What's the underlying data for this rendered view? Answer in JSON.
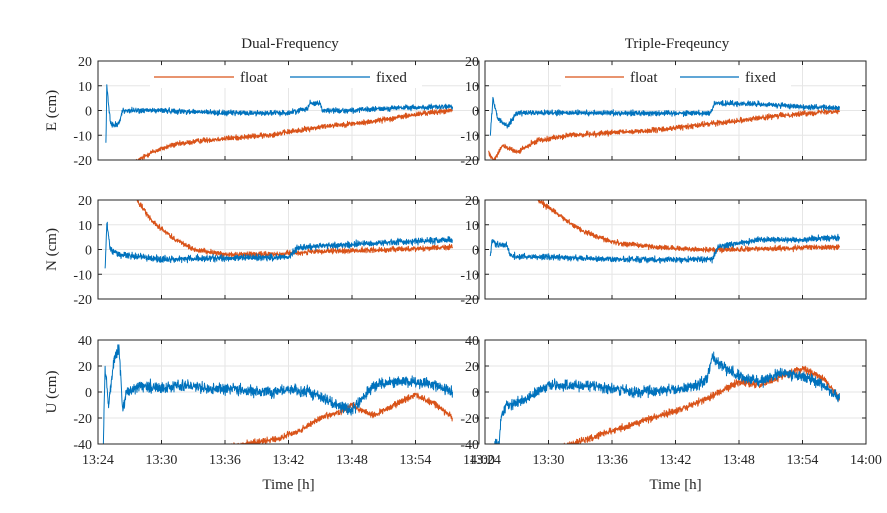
{
  "figure": {
    "col_titles": [
      "Dual-Frequency",
      "Triple-Freqeuncy"
    ],
    "xlabel": "Time [h]"
  },
  "colors": {
    "float": "#D95319",
    "fixed": "#0072BD",
    "grid": "#e6e6e6",
    "axis": "#262626"
  },
  "chart_data": [
    {
      "type": "line",
      "panel": "dual-E",
      "title": "Dual-Frequency",
      "ylabel": "E (cm)",
      "xlabel": "",
      "xlim": [
        "13:24",
        "14:00"
      ],
      "ylim": [
        -20,
        20
      ],
      "yticks": [
        -20,
        -10,
        0,
        10,
        20
      ],
      "xticks": [
        "13:24",
        "13:30",
        "13:36",
        "13:42",
        "13:48",
        "13:54",
        "14:00"
      ],
      "show_xticklabels": false,
      "grid": true,
      "legend": {
        "entries": [
          "float",
          "fixed"
        ],
        "placement": "top"
      },
      "series": [
        {
          "name": "float",
          "noise": 0.9,
          "x": [
            "13:27:30",
            "13:29",
            "13:31",
            "13:34",
            "13:37",
            "13:40",
            "13:43",
            "13:46",
            "13:49",
            "13:52",
            "13:55",
            "13:57:30"
          ],
          "y": [
            -21,
            -17,
            -14,
            -12,
            -11,
            -10,
            -8,
            -6,
            -5,
            -3,
            -1,
            0
          ]
        },
        {
          "name": "fixed",
          "noise": 0.9,
          "x": [
            "13:24:45",
            "13:24:50",
            "13:25:10",
            "13:25:30",
            "13:26",
            "13:26:20",
            "13:27",
            "13:30",
            "13:36",
            "13:42",
            "13:43:50",
            "13:44",
            "13:45",
            "13:45:10",
            "13:48",
            "13:52",
            "13:57:30"
          ],
          "y": [
            -13,
            10,
            -5,
            -6,
            -5,
            0,
            0,
            0,
            -1,
            -1,
            1,
            3,
            3,
            0,
            0,
            1,
            1.5
          ]
        }
      ]
    },
    {
      "type": "line",
      "panel": "triple-E",
      "title": "Triple-Freqeuncy",
      "ylabel": "",
      "xlabel": "",
      "xlim": [
        "13:24",
        "14:00"
      ],
      "ylim": [
        -20,
        20
      ],
      "yticks": [
        -20,
        -10,
        0,
        10,
        20
      ],
      "xticks": [
        "13:24",
        "13:30",
        "13:36",
        "13:42",
        "13:48",
        "13:54",
        "14:00"
      ],
      "show_xticklabels": false,
      "grid": true,
      "legend": {
        "entries": [
          "float",
          "fixed"
        ],
        "placement": "top"
      },
      "series": [
        {
          "name": "float",
          "noise": 0.9,
          "x": [
            "13:24:20",
            "13:24:50",
            "13:25:40",
            "13:27",
            "13:29",
            "13:32",
            "13:36",
            "13:40",
            "13:44",
            "13:48",
            "13:52",
            "13:57:30"
          ],
          "y": [
            -17,
            -20,
            -14,
            -17,
            -12,
            -10,
            -9,
            -8,
            -6,
            -4,
            -2,
            0
          ]
        },
        {
          "name": "fixed",
          "noise": 0.9,
          "x": [
            "13:24:30",
            "13:24:45",
            "13:25:10",
            "13:25:40",
            "13:26:10",
            "13:27",
            "13:30",
            "13:36",
            "13:42",
            "13:45:20",
            "13:45:40",
            "13:50",
            "13:54",
            "13:57:30"
          ],
          "y": [
            -10,
            5,
            -3,
            -5,
            -6,
            -1,
            -1,
            -1,
            -1,
            -1,
            3,
            2.5,
            1.5,
            1
          ]
        }
      ]
    },
    {
      "type": "line",
      "panel": "dual-N",
      "title": "",
      "ylabel": "N (cm)",
      "xlabel": "",
      "xlim": [
        "13:24",
        "14:00"
      ],
      "ylim": [
        -20,
        20
      ],
      "yticks": [
        -20,
        -10,
        0,
        10,
        20
      ],
      "xticks": [
        "13:24",
        "13:30",
        "13:36",
        "13:42",
        "13:48",
        "13:54",
        "14:00"
      ],
      "show_xticklabels": false,
      "grid": true,
      "series": [
        {
          "name": "float",
          "noise": 0.9,
          "x": [
            "13:27:40",
            "13:29",
            "13:31",
            "13:33",
            "13:36",
            "13:40",
            "13:44",
            "13:48",
            "13:52",
            "13:57:30"
          ],
          "y": [
            20,
            12,
            5,
            0,
            -2,
            -2,
            -1,
            -0.5,
            0,
            1
          ]
        },
        {
          "name": "fixed",
          "noise": 1.1,
          "x": [
            "13:24:40",
            "13:24:50",
            "13:25:10",
            "13:26",
            "13:28",
            "13:30",
            "13:36",
            "13:42",
            "13:43",
            "13:48",
            "13:52",
            "13:57:30"
          ],
          "y": [
            -9,
            11,
            0,
            -2,
            -3,
            -4,
            -3.5,
            -3,
            1,
            2,
            3,
            4
          ]
        }
      ]
    },
    {
      "type": "line",
      "panel": "triple-N",
      "title": "",
      "ylabel": "",
      "xlabel": "",
      "xlim": [
        "13:24",
        "14:00"
      ],
      "ylim": [
        -20,
        20
      ],
      "yticks": [
        -20,
        -10,
        0,
        10,
        20
      ],
      "xticks": [
        "13:24",
        "13:30",
        "13:36",
        "13:42",
        "13:48",
        "13:54",
        "14:00"
      ],
      "show_xticklabels": false,
      "grid": true,
      "series": [
        {
          "name": "float",
          "noise": 0.9,
          "x": [
            "13:29",
            "13:31",
            "13:33",
            "13:36",
            "13:40",
            "13:44",
            "13:48",
            "13:52",
            "13:57:30"
          ],
          "y": [
            20,
            14,
            8,
            3,
            1,
            0,
            0,
            0.5,
            1
          ]
        },
        {
          "name": "fixed",
          "noise": 1.0,
          "x": [
            "13:24:30",
            "13:24:40",
            "13:25",
            "13:26",
            "13:26:20",
            "13:27",
            "13:30",
            "13:36",
            "13:42",
            "13:45:30",
            "13:46",
            "13:50",
            "13:54",
            "13:57:30"
          ],
          "y": [
            -3,
            4,
            2,
            2,
            -2,
            -3,
            -3,
            -4,
            -4,
            -4,
            1,
            4,
            4,
            5
          ]
        }
      ]
    },
    {
      "type": "line",
      "panel": "dual-U",
      "title": "",
      "ylabel": "U (cm)",
      "xlabel": "Time [h]",
      "xlim": [
        "13:24",
        "14:00"
      ],
      "ylim": [
        -40,
        40
      ],
      "yticks": [
        -40,
        -20,
        0,
        20,
        40
      ],
      "xticks": [
        "13:24",
        "13:30",
        "13:36",
        "13:42",
        "13:48",
        "13:54",
        "14:00"
      ],
      "show_xticklabels": true,
      "grid": true,
      "series": [
        {
          "name": "float",
          "noise": 2.0,
          "x": [
            "13:35:40",
            "13:38",
            "13:41",
            "13:43",
            "13:45",
            "13:47",
            "13:48",
            "13:49",
            "13:50",
            "13:52",
            "13:54",
            "13:56",
            "13:57:30"
          ],
          "y": [
            -42,
            -40,
            -36,
            -30,
            -20,
            -15,
            -10,
            -15,
            -18,
            -10,
            -2,
            -10,
            -20
          ]
        },
        {
          "name": "fixed",
          "noise": 3.5,
          "x": [
            "13:24:30",
            "13:24:40",
            "13:25",
            "13:25:30",
            "13:26",
            "13:26:20",
            "13:26:40",
            "13:28",
            "13:30",
            "13:32",
            "13:36",
            "13:40",
            "13:42",
            "13:44",
            "13:46",
            "13:48",
            "13:49",
            "13:50",
            "13:52",
            "13:54",
            "13:56",
            "13:57:30"
          ],
          "y": [
            -45,
            20,
            -10,
            25,
            33,
            -15,
            0,
            5,
            3,
            5,
            2,
            0,
            2,
            0,
            -8,
            -14,
            -5,
            5,
            8,
            8,
            5,
            0
          ]
        }
      ]
    },
    {
      "type": "line",
      "panel": "triple-U",
      "title": "",
      "ylabel": "",
      "xlabel": "Time [h]",
      "xlim": [
        "13:24",
        "14:00"
      ],
      "ylim": [
        -40,
        40
      ],
      "yticks": [
        -40,
        -20,
        0,
        20,
        40
      ],
      "xticks": [
        "13:24",
        "13:30",
        "13:36",
        "13:42",
        "13:48",
        "13:54",
        "14:00"
      ],
      "show_xticklabels": true,
      "grid": true,
      "series": [
        {
          "name": "float",
          "noise": 2.2,
          "x": [
            "13:30:30",
            "13:33",
            "13:36",
            "13:39",
            "13:42",
            "13:45",
            "13:48",
            "13:50",
            "13:52",
            "13:54",
            "13:56",
            "13:57:30"
          ],
          "y": [
            -45,
            -38,
            -30,
            -22,
            -15,
            -5,
            8,
            5,
            12,
            18,
            10,
            -5
          ]
        },
        {
          "name": "fixed",
          "noise": 3.5,
          "x": [
            "13:24:40",
            "13:25",
            "13:25:20",
            "13:25:30",
            "13:26",
            "13:27",
            "13:28",
            "13:30",
            "13:34",
            "13:38",
            "13:42",
            "13:44",
            "13:45",
            "13:45:30",
            "13:46",
            "13:48",
            "13:50",
            "13:52",
            "13:54",
            "13:56",
            "13:57:30"
          ],
          "y": [
            -45,
            -38,
            -42,
            -20,
            -10,
            -8,
            -5,
            5,
            5,
            0,
            2,
            5,
            10,
            28,
            22,
            12,
            8,
            15,
            12,
            5,
            -5
          ]
        }
      ]
    }
  ]
}
